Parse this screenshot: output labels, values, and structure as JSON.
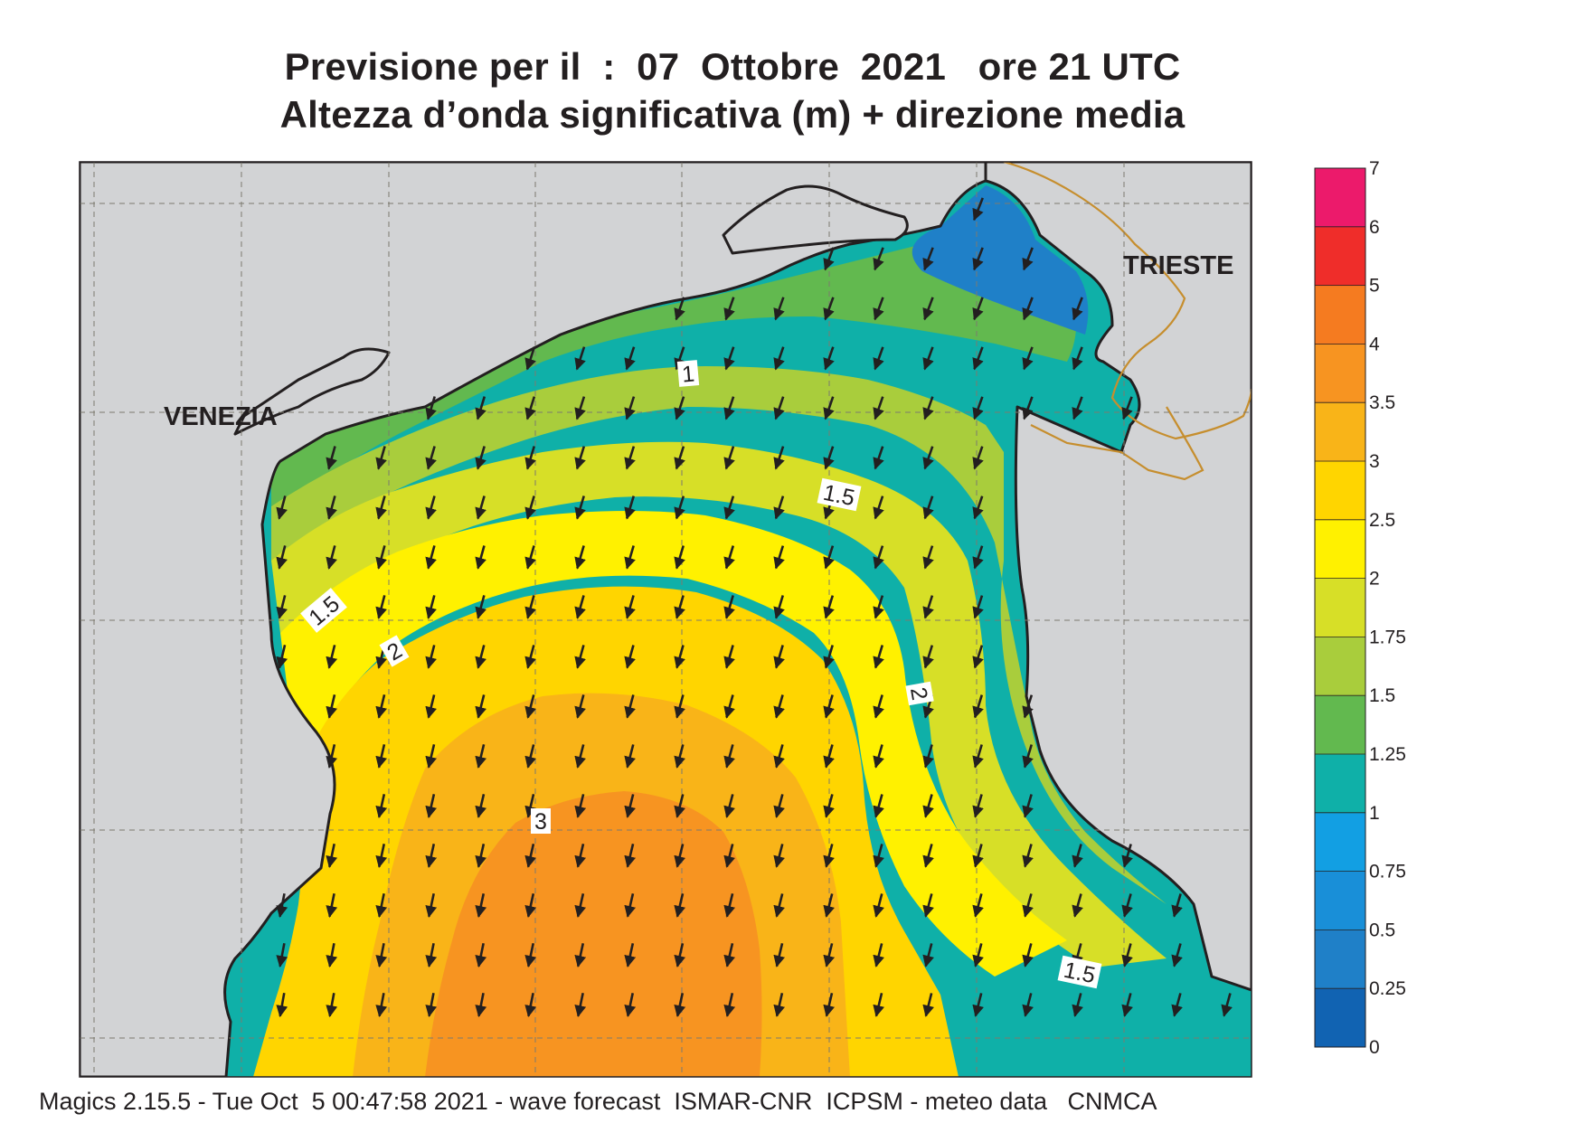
{
  "title": {
    "line1": "Previsione per il  :  07  Ottobre  2021   ore 21 UTC",
    "line2": "Altezza d’onda significativa (m) + direzione media"
  },
  "map": {
    "cities": [
      {
        "name": "VENEZIA"
      },
      {
        "name": "TRIESTE"
      }
    ],
    "contour_labels": [
      "1",
      "1.5",
      "1.5",
      "2",
      "2",
      "3",
      "1.5"
    ]
  },
  "legend": {
    "levels": [
      "0",
      "0.25",
      "0.5",
      "0.75",
      "1",
      "1.25",
      "1.5",
      "1.75",
      "2",
      "2.5",
      "3",
      "3.5",
      "4",
      "5",
      "6",
      "7"
    ],
    "colors": [
      "#1163b2",
      "#1f80c8",
      "#198fd8",
      "#129fe3",
      "#0fb0a8",
      "#62b94f",
      "#a9cd3c",
      "#d7df27",
      "#fff100",
      "#ffd500",
      "#f9b418",
      "#f79421",
      "#f57b20",
      "#ef2d2a",
      "#ec1a6b"
    ]
  },
  "colors": {
    "land": "#d2d3d5",
    "border": "#c68e2e",
    "coast": "#231f20",
    "grid": "#7c7a6e"
  },
  "footer": "Magics 2.15.5 - Tue Oct  5 00:47:58 2021 - wave forecast  ISMAR-CNR  ICPSM - meteo data   CNMCA"
}
